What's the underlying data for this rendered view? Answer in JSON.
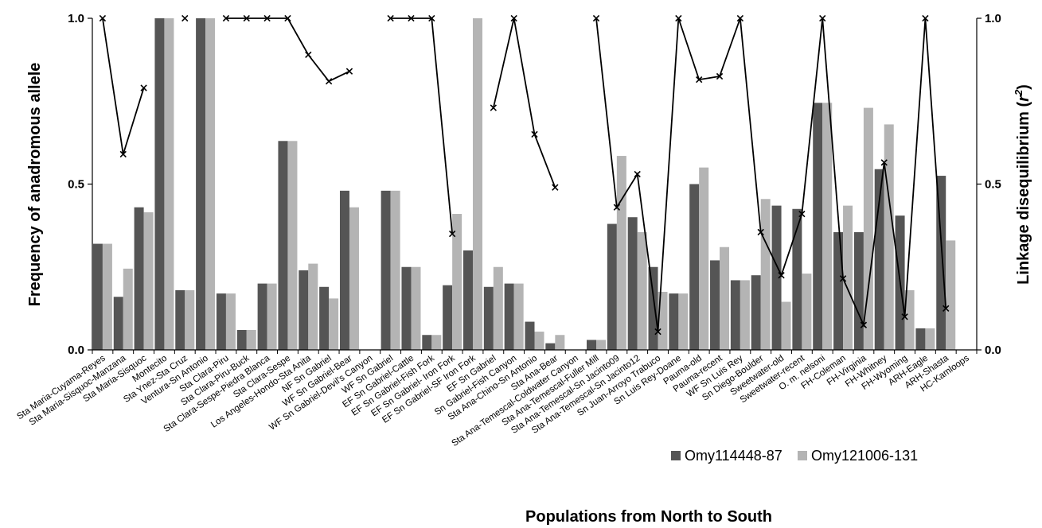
{
  "chart_data": {
    "type": "bar",
    "categories": [
      "Sta Maria-Cuyama-Reyes",
      "Sta Maria-Sisquoc-Manzana",
      "Sta Maria-Sisquoc",
      "Montecito",
      "Sta Ynez-Sta Cruz",
      "Ventura-Sn Antonio",
      "Sta Clara-Piru",
      "Sta Clara-Piru-Buck",
      "Sta Clara-Sespe-Piedra Blanca",
      "Sta Clara-Sespe",
      "Los Angeles-Hondo-Sta Anita",
      "NF Sn Gabriel",
      "WF Sn Gabriel-Bear",
      "WF Sn Gabriel-Devil's Canyon",
      "WF Sn Gabriel",
      "EF Sn Gabriel-Cattle",
      "EF Sn Gabriel-Fish Fork",
      "EF Sn Gabriel- Iron Fork",
      "EF Sn Gabriel-SF Iron Fork",
      "EF Sn Gabriel",
      "Sn Gabriel-Fish Canyon",
      "Sta Ana-Chino-Sn Antonio",
      "Sta Ana-Bear",
      "Sta Ana-Temescal-Coldwater Canyon",
      "Sta Ana-Temescal-Fuller Mill",
      "Sta Ana-Temescal-Sn Jacinto09",
      "Sta Ana-Temescal-Sn Jacinto12",
      "Sn Juan-Arroyo Trabuco",
      "Sn Luis Rey-Doane",
      "Pauma-old",
      "Pauma-recent",
      "WF Sn Luis Rey",
      "Sn Diego-Boulder",
      "Sweetwater-old",
      "Sweetwater-recent",
      "O. m. nelsoni",
      "FH-Coleman",
      "FH-Virginia",
      "FH-Whitney",
      "FH-Wyoming",
      "ARH-Eagle",
      "ARH-Shasta",
      "HC-Kamloops"
    ],
    "series": [
      {
        "name": "Omy114448-87",
        "color": "#555555",
        "values": [
          0.32,
          0.16,
          0.43,
          1.0,
          0.18,
          1.0,
          0.17,
          0.06,
          0.2,
          0.63,
          0.24,
          0.19,
          0.48,
          null,
          0.48,
          0.25,
          0.045,
          0.195,
          0.3,
          0.19,
          0.2,
          0.085,
          0.02,
          null,
          0.03,
          0.38,
          0.4,
          0.25,
          0.17,
          0.5,
          0.27,
          0.21,
          0.225,
          0.435,
          0.425,
          0.745,
          0.355,
          0.355,
          0.545,
          0.405,
          0.065,
          0.525,
          null
        ]
      },
      {
        "name": "Omy121006-131",
        "color": "#b4b4b4",
        "values": [
          0.32,
          0.245,
          0.415,
          1.0,
          0.18,
          1.0,
          0.17,
          0.06,
          0.2,
          0.63,
          0.26,
          0.155,
          0.43,
          null,
          0.48,
          0.25,
          0.045,
          0.41,
          1.0,
          0.25,
          0.2,
          0.055,
          0.045,
          null,
          0.03,
          0.585,
          0.355,
          0.175,
          0.17,
          0.55,
          0.31,
          0.21,
          0.455,
          0.145,
          0.23,
          0.745,
          0.435,
          0.73,
          0.68,
          0.18,
          0.065,
          0.33,
          null
        ]
      }
    ],
    "ld_series": {
      "name": "Linkage disequilibrium (r2)",
      "color": "#000000",
      "axis": "right",
      "values": [
        1.0,
        0.59,
        0.79,
        null,
        1.0,
        null,
        1.0,
        1.0,
        1.0,
        1.0,
        0.89,
        0.81,
        0.84,
        null,
        1.0,
        1.0,
        1.0,
        0.35,
        null,
        0.73,
        1.0,
        0.65,
        0.49,
        null,
        1.0,
        0.43,
        0.53,
        0.055,
        1.0,
        0.815,
        0.825,
        1.0,
        0.355,
        0.225,
        0.41,
        1.0,
        0.215,
        0.075,
        0.565,
        0.1,
        1.0,
        0.125,
        null
      ]
    },
    "ylim": [
      0,
      1.0
    ],
    "y_ticks": [
      "0.0",
      "0.5",
      "1.0"
    ],
    "y2lim": [
      0,
      1.0
    ],
    "y2_ticks": [
      "0.0",
      "0.5",
      "1.0"
    ],
    "title": "",
    "xlabel": "Populations from North to South",
    "ylabel": "Frequency of anadromous allele",
    "y2label_main": "Linkage disequilibrium (",
    "y2label_var": "r",
    "y2label_sup": "2",
    "y2label_end": ")",
    "legend_position": "bottom-right",
    "grid": false
  }
}
